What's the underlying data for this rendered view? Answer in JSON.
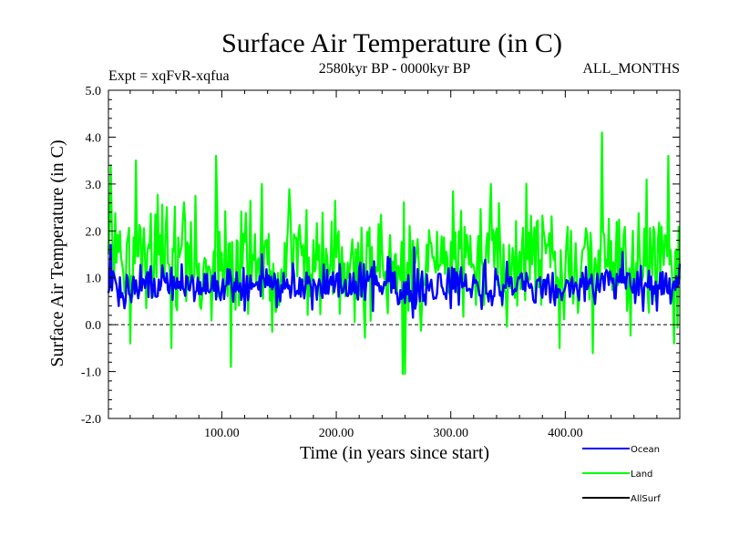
{
  "chart_data": {
    "type": "line",
    "title": "Surface Air Temperature (in C)",
    "subtitle": "2580kyr BP - 0000kyr BP",
    "left_annotation": "Expt = xqFvR-xqfua",
    "right_annotation": "ALL_MONTHS",
    "xlabel": "Time (in years since start)",
    "ylabel": "Surface Air Temperature (in C)",
    "xlim": [
      1,
      500
    ],
    "ylim": [
      -2.0,
      5.0
    ],
    "x_ticks": [
      100,
      200,
      300,
      400
    ],
    "x_tick_labels": [
      "100.00",
      "200.00",
      "300.00",
      "400.00"
    ],
    "y_ticks": [
      -2.0,
      -1.0,
      0.0,
      1.0,
      2.0,
      3.0,
      4.0,
      5.0
    ],
    "y_tick_labels": [
      "-2.0",
      "-1.0",
      "0.0",
      "1.0",
      "2.0",
      "3.0",
      "4.0",
      "5.0"
    ],
    "zero_line": 0.0,
    "series": [
      {
        "name": "Land",
        "color": "#00ff00",
        "n_points": 500,
        "approx_mean": 1.35,
        "approx_min": -1.05,
        "approx_max": 4.1,
        "notable_peaks": [
          [
            3,
            3.4
          ],
          [
            25,
            3.5
          ],
          [
            95,
            3.6
          ],
          [
            135,
            3.0
          ],
          [
            260,
            -1.05
          ],
          [
            335,
            3.0
          ],
          [
            432,
            4.1
          ],
          [
            490,
            3.6
          ]
        ],
        "notable_troughs": [
          [
            20,
            -0.4
          ],
          [
            56,
            -0.5
          ],
          [
            108,
            -0.9
          ],
          [
            258,
            -1.05
          ],
          [
            395,
            -0.5
          ],
          [
            495,
            -0.4
          ]
        ]
      },
      {
        "name": "Ocean",
        "color": "#0000ff",
        "n_points": 500,
        "approx_mean": 0.82,
        "approx_min": 0.15,
        "approx_max": 1.65,
        "notable_peaks": [
          [
            3,
            1.7
          ],
          [
            135,
            1.5
          ],
          [
            268,
            1.65
          ],
          [
            450,
            1.55
          ],
          [
            500,
            1.3
          ]
        ],
        "notable_troughs": [
          [
            10,
            0.4
          ],
          [
            120,
            0.3
          ],
          [
            300,
            0.35
          ],
          [
            480,
            0.3
          ]
        ]
      },
      {
        "name": "AllSurf",
        "color": "#000000",
        "n_points": 0
      }
    ],
    "legend": {
      "placement": "bottom-right",
      "entries": [
        {
          "label": "Ocean",
          "color": "#0000ff"
        },
        {
          "label": "Land",
          "color": "#00ff00"
        },
        {
          "label": "AllSurf",
          "color": "#000000"
        }
      ]
    }
  }
}
